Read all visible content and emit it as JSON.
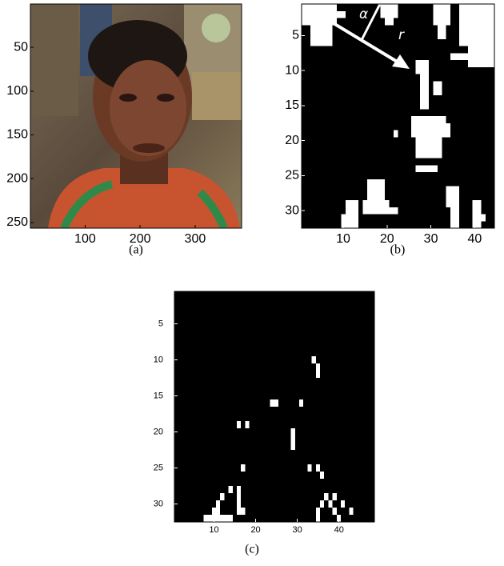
{
  "panels": [
    {
      "caption": "(a)",
      "xlim": [
        0.5,
        384.5
      ],
      "ylim": [
        0.5,
        256.5
      ],
      "xticks": [
        100,
        200,
        300
      ],
      "yticks": [
        50,
        100,
        150,
        200,
        250
      ]
    },
    {
      "caption": "(b)",
      "xlim": [
        0.5,
        44.5
      ],
      "ylim": [
        0.5,
        32.5
      ],
      "xticks": [
        10,
        20,
        30,
        40
      ],
      "yticks": [
        5,
        10,
        15,
        20,
        25,
        30
      ],
      "annotations": [
        "α",
        "r"
      ]
    },
    {
      "caption": "(c)",
      "xlim": [
        0.5,
        48.5
      ],
      "ylim": [
        0.5,
        32.5
      ],
      "xticks": [
        10,
        20,
        30,
        40
      ],
      "yticks": [
        5,
        10,
        15,
        20,
        25,
        30
      ]
    }
  ]
}
